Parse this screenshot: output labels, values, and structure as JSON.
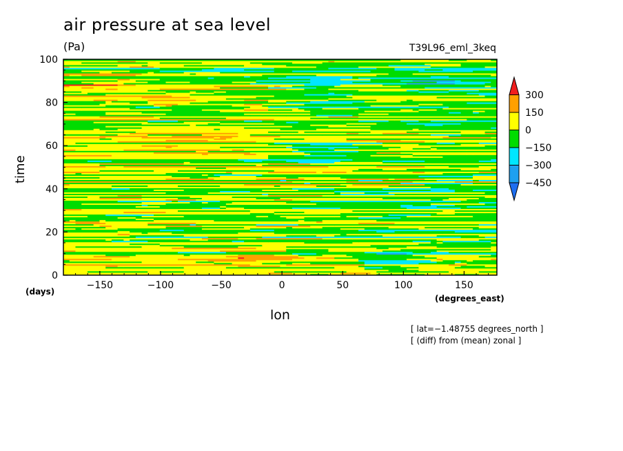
{
  "chart_data": {
    "type": "heatmap",
    "title": "air pressure at sea level",
    "units": "(Pa)",
    "run_id": "T39L96_eml_3keq",
    "xlabel": "lon",
    "ylabel": "time",
    "x_units": "(degrees_east)",
    "y_units": "(days)",
    "xlim": [
      -180,
      177
    ],
    "ylim": [
      0,
      100
    ],
    "x_ticks": [
      -150,
      -100,
      -50,
      0,
      50,
      100,
      150
    ],
    "y_ticks": [
      0,
      20,
      40,
      60,
      80,
      100
    ],
    "x_tick_labels": [
      "−150",
      "−100",
      "−50",
      "0",
      "50",
      "100",
      "150"
    ],
    "y_tick_labels": [
      "0",
      "20",
      "40",
      "60",
      "80",
      "100"
    ],
    "notes": [
      "[ lat=−1.48755 degrees_north ]",
      "[ (diff) from (mean) zonal ]"
    ],
    "colorbar": {
      "levels": [
        -450,
        -300,
        -150,
        0,
        150,
        300
      ],
      "labels": [
        "300",
        "150",
        "0",
        "−150",
        "−300",
        "−450"
      ],
      "colors": [
        "#1e6ef0",
        "#1ea0f0",
        "#00e6ff",
        "#00dc00",
        "#ffff00",
        "#ffa000",
        "#f01e1e"
      ]
    },
    "regions": [
      {
        "lon": [
          -180,
          177
        ],
        "time": [
          0,
          100
        ],
        "value": 0,
        "label": "mixed yellow/green banding"
      },
      {
        "lon": [
          -110,
          -70
        ],
        "time": [
          78,
          84
        ],
        "value": 170
      },
      {
        "lon": [
          -40,
          -10
        ],
        "time": [
          75,
          80
        ],
        "value": 220
      },
      {
        "lon": [
          -120,
          -40
        ],
        "time": [
          55,
          72
        ],
        "value": 90
      },
      {
        "lon": [
          0,
          60
        ],
        "time": [
          78,
          92
        ],
        "value": -180
      },
      {
        "lon": [
          5,
          70
        ],
        "time": [
          52,
          62
        ],
        "value": -170
      },
      {
        "lon": [
          90,
          160
        ],
        "time": [
          84,
          92
        ],
        "value": -160
      },
      {
        "lon": [
          60,
          120
        ],
        "time": [
          2,
          12
        ],
        "value": -170
      },
      {
        "lon": [
          110,
          150
        ],
        "time": [
          38,
          46
        ],
        "value": -160
      },
      {
        "lon": [
          -60,
          10
        ],
        "time": [
          4,
          12
        ],
        "value": 140
      },
      {
        "lon": [
          -180,
          -120
        ],
        "time": [
          85,
          95
        ],
        "value": 120
      }
    ]
  }
}
